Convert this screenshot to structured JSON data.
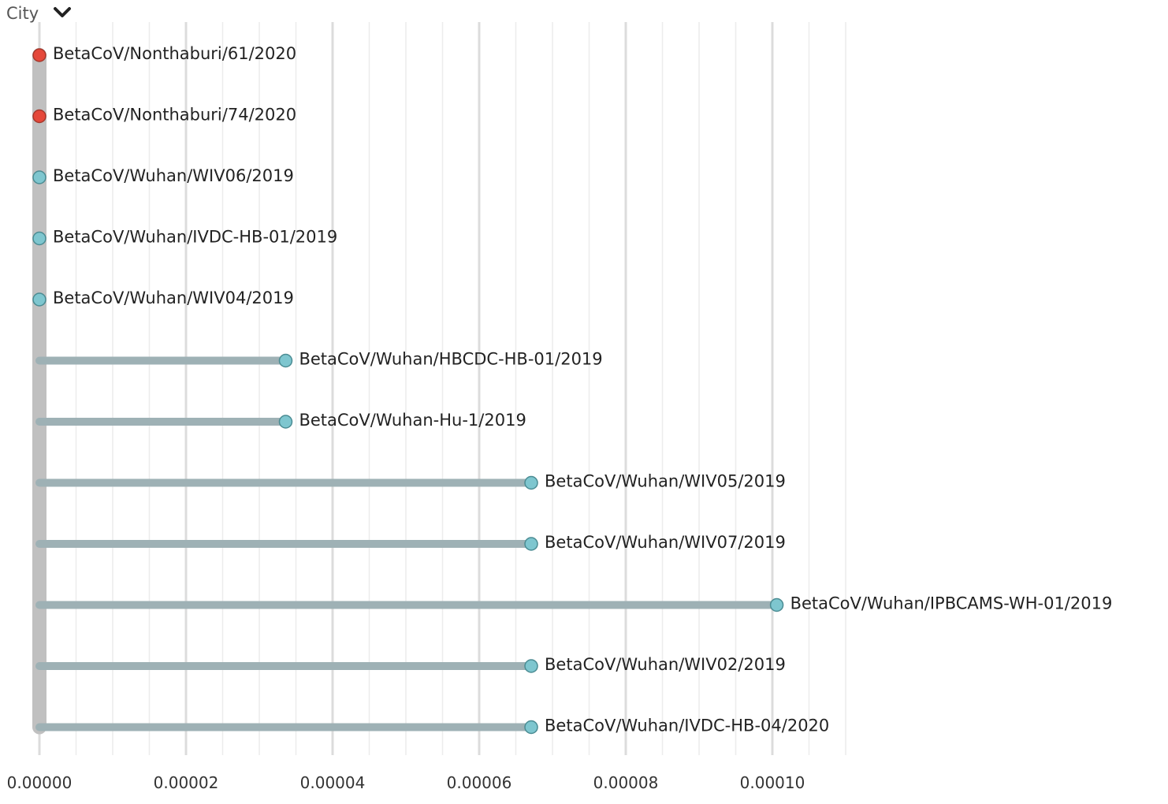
{
  "color_by": {
    "label": "City",
    "icon": "chevron-down-icon"
  },
  "colors": {
    "branch": "#9eb1b5",
    "root_stem": "#c0c0c0",
    "grid_major": "#dcdcdc",
    "grid_minor": "#ececec",
    "tip_wuhan": "#7ec6cf",
    "tip_nonthaburi": "#e5483a",
    "tip_stroke": "#4b8c93",
    "tip_stroke_nonthaburi": "#a5382c"
  },
  "chart_data": {
    "type": "scatter",
    "title": "",
    "xlabel": "",
    "ylabel": "",
    "xlim": [
      0,
      0.00011
    ],
    "x_ticks": [
      "0.00000",
      "0.00002",
      "0.00004",
      "0.00006",
      "0.00008",
      "0.00010"
    ],
    "x_tick_values": [
      0,
      2e-05,
      4e-05,
      6e-05,
      8e-05,
      0.0001
    ],
    "grid": true,
    "tips": [
      {
        "name": "BetaCoV/Nonthaburi/61/2020",
        "divergence": 0,
        "city": "Nonthaburi"
      },
      {
        "name": "BetaCoV/Nonthaburi/74/2020",
        "divergence": 0,
        "city": "Nonthaburi"
      },
      {
        "name": "BetaCoV/Wuhan/WIV06/2019",
        "divergence": 0,
        "city": "Wuhan"
      },
      {
        "name": "BetaCoV/Wuhan/IVDC-HB-01/2019",
        "divergence": 0,
        "city": "Wuhan"
      },
      {
        "name": "BetaCoV/Wuhan/WIV04/2019",
        "divergence": 0,
        "city": "Wuhan"
      },
      {
        "name": "BetaCoV/Wuhan/HBCDC-HB-01/2019",
        "divergence": 3.36e-05,
        "city": "Wuhan"
      },
      {
        "name": "BetaCoV/Wuhan-Hu-1/2019",
        "divergence": 3.36e-05,
        "city": "Wuhan"
      },
      {
        "name": "BetaCoV/Wuhan/WIV05/2019",
        "divergence": 6.71e-05,
        "city": "Wuhan"
      },
      {
        "name": "BetaCoV/Wuhan/WIV07/2019",
        "divergence": 6.71e-05,
        "city": "Wuhan"
      },
      {
        "name": "BetaCoV/Wuhan/IPBCAMS-WH-01/2019",
        "divergence": 0.0001006,
        "city": "Wuhan"
      },
      {
        "name": "BetaCoV/Wuhan/WIV02/2019",
        "divergence": 6.71e-05,
        "city": "Wuhan"
      },
      {
        "name": "BetaCoV/Wuhan/IVDC-HB-04/2020",
        "divergence": 6.71e-05,
        "city": "Wuhan"
      }
    ]
  }
}
